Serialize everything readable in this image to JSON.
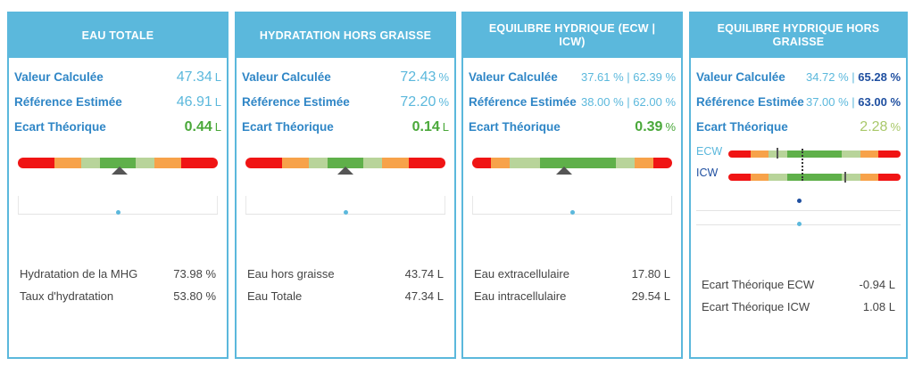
{
  "colors": {
    "header": "#5bb8dc",
    "red": "#f01414",
    "orange": "#f7a24a",
    "lightgreen": "#b8d49a",
    "green": "#5fb04a"
  },
  "cards": [
    {
      "title": "EAU TOTALE",
      "calc_label": "Valeur Calculée",
      "calc_value": "47.34",
      "calc_unit": "L",
      "ref_label": "Référence Estimée",
      "ref_value": "46.91",
      "ref_unit": "L",
      "ecart_label": "Ecart Théorique",
      "ecart_value": "0.44",
      "ecart_unit": "L",
      "gauge_position": 0.51,
      "details": [
        {
          "label": "Hydratation de la MHG",
          "value": "73.98 %"
        },
        {
          "label": "Taux d'hydratation",
          "value": "53.80 %"
        }
      ]
    },
    {
      "title": "HYDRATATION HORS GRAISSE",
      "calc_label": "Valeur Calculée",
      "calc_value": "72.43",
      "calc_unit": "%",
      "ref_label": "Référence Estimée",
      "ref_value": "72.20",
      "ref_unit": "%",
      "ecart_label": "Ecart Théorique",
      "ecart_value": "0.14",
      "ecart_unit": "L",
      "gauge_position": 0.5,
      "details": [
        {
          "label": "Eau hors graisse",
          "value": "43.74 L"
        },
        {
          "label": "Eau Totale",
          "value": "47.34 L"
        }
      ]
    },
    {
      "title": "EQUILIBRE HYDRIQUE (ECW | ICW)",
      "calc_label": "Valeur Calculée",
      "calc_value_1": "37.61 %",
      "calc_value_2": "62.39 %",
      "ref_label": "Référence Estimée",
      "ref_value_1": "38.00 %",
      "ref_value_2": "62.00 %",
      "ecart_label": "Ecart Théorique",
      "ecart_value": "0.39",
      "ecart_unit": "%",
      "gauge_position": 0.46,
      "details": [
        {
          "label": "Eau extracellulaire",
          "value": "17.80 L"
        },
        {
          "label": "Eau intracellulaire",
          "value": "29.54 L"
        }
      ]
    },
    {
      "title": "EQUILIBRE HYDRIQUE HORS GRAISSE",
      "calc_label": "Valeur Calculée",
      "calc_value_1": "34.72 %",
      "calc_value_2": "65.28 %",
      "ref_label": "Référence Estimée",
      "ref_value_1": "37.00 %",
      "ref_value_2": "63.00 %",
      "ecart_label": "Ecart Théorique",
      "ecart_value": "2.28",
      "ecart_unit": "%",
      "ecw_label": "ECW",
      "icw_label": "ICW",
      "ecw_position": 0.3,
      "icw_position": 0.72,
      "details": [
        {
          "label": "Ecart Théorique ECW",
          "value": "-0.94 L"
        },
        {
          "label": "Ecart Théorique ICW",
          "value": "1.08 L"
        }
      ]
    }
  ]
}
